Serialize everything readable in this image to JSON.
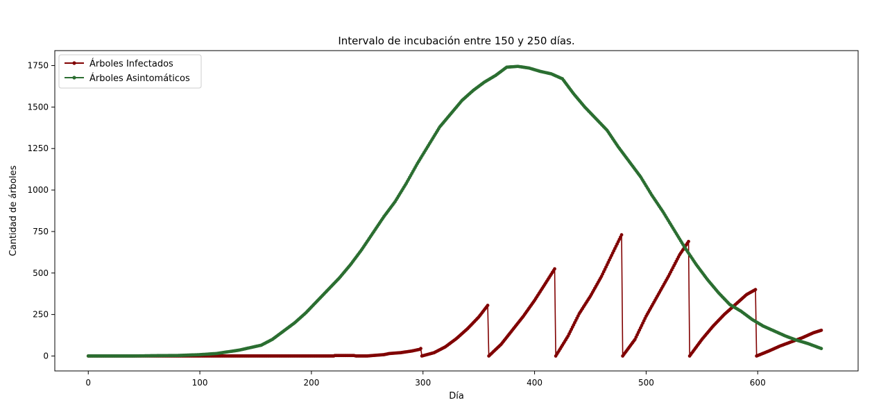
{
  "chart_data": {
    "type": "line",
    "title": "Intervalo de incubación entre 150 y 250 días.",
    "xlabel": "Día",
    "ylabel": "Cantidad de árboles",
    "xlim": [
      -30,
      690
    ],
    "ylim": [
      -90,
      1840
    ],
    "xticks": [
      0,
      100,
      200,
      300,
      400,
      500,
      600
    ],
    "yticks": [
      0,
      250,
      500,
      750,
      1000,
      1250,
      1500,
      1750
    ],
    "grid": false,
    "legend_position": "top-left",
    "series": [
      {
        "name": "Árboles Infectados",
        "color": "#800000",
        "points": [
          [
            0,
            0
          ],
          [
            60,
            0
          ],
          [
            120,
            0
          ],
          [
            180,
            0
          ],
          [
            220,
            0
          ],
          [
            221,
            3
          ],
          [
            238,
            3
          ],
          [
            240,
            0
          ],
          [
            250,
            0
          ],
          [
            255,
            3
          ],
          [
            265,
            8
          ],
          [
            270,
            15
          ],
          [
            280,
            20
          ],
          [
            290,
            30
          ],
          [
            297,
            40
          ],
          [
            298,
            45
          ],
          [
            299,
            0
          ],
          [
            310,
            20
          ],
          [
            320,
            55
          ],
          [
            330,
            105
          ],
          [
            340,
            165
          ],
          [
            350,
            235
          ],
          [
            358,
            305
          ],
          [
            359,
            0
          ],
          [
            370,
            70
          ],
          [
            380,
            155
          ],
          [
            390,
            240
          ],
          [
            400,
            335
          ],
          [
            410,
            440
          ],
          [
            418,
            525
          ],
          [
            419,
            0
          ],
          [
            430,
            120
          ],
          [
            440,
            255
          ],
          [
            450,
            360
          ],
          [
            460,
            480
          ],
          [
            470,
            620
          ],
          [
            478,
            730
          ],
          [
            479,
            0
          ],
          [
            490,
            100
          ],
          [
            500,
            240
          ],
          [
            510,
            360
          ],
          [
            520,
            480
          ],
          [
            530,
            610
          ],
          [
            538,
            690
          ],
          [
            539,
            0
          ],
          [
            550,
            100
          ],
          [
            560,
            180
          ],
          [
            570,
            250
          ],
          [
            580,
            310
          ],
          [
            590,
            370
          ],
          [
            598,
            400
          ],
          [
            599,
            0
          ],
          [
            610,
            30
          ],
          [
            620,
            60
          ],
          [
            630,
            85
          ],
          [
            640,
            110
          ],
          [
            650,
            140
          ],
          [
            657,
            155
          ]
        ]
      },
      {
        "name": "Árboles Asintomáticos",
        "color": "#2b6e31",
        "points": [
          [
            0,
            0
          ],
          [
            40,
            0
          ],
          [
            60,
            2
          ],
          [
            80,
            3
          ],
          [
            100,
            8
          ],
          [
            115,
            15
          ],
          [
            125,
            25
          ],
          [
            135,
            35
          ],
          [
            145,
            50
          ],
          [
            155,
            65
          ],
          [
            165,
            100
          ],
          [
            175,
            150
          ],
          [
            185,
            200
          ],
          [
            195,
            260
          ],
          [
            205,
            330
          ],
          [
            215,
            400
          ],
          [
            225,
            470
          ],
          [
            235,
            550
          ],
          [
            245,
            640
          ],
          [
            255,
            740
          ],
          [
            265,
            840
          ],
          [
            275,
            930
          ],
          [
            285,
            1040
          ],
          [
            295,
            1160
          ],
          [
            305,
            1270
          ],
          [
            315,
            1380
          ],
          [
            325,
            1460
          ],
          [
            335,
            1540
          ],
          [
            345,
            1600
          ],
          [
            355,
            1650
          ],
          [
            365,
            1690
          ],
          [
            375,
            1740
          ],
          [
            385,
            1745
          ],
          [
            395,
            1735
          ],
          [
            405,
            1715
          ],
          [
            415,
            1700
          ],
          [
            425,
            1670
          ],
          [
            435,
            1580
          ],
          [
            445,
            1500
          ],
          [
            455,
            1430
          ],
          [
            465,
            1360
          ],
          [
            475,
            1260
          ],
          [
            485,
            1170
          ],
          [
            495,
            1080
          ],
          [
            505,
            970
          ],
          [
            515,
            870
          ],
          [
            525,
            760
          ],
          [
            535,
            650
          ],
          [
            545,
            550
          ],
          [
            555,
            460
          ],
          [
            565,
            380
          ],
          [
            575,
            310
          ],
          [
            585,
            270
          ],
          [
            595,
            220
          ],
          [
            605,
            180
          ],
          [
            615,
            150
          ],
          [
            625,
            120
          ],
          [
            635,
            95
          ],
          [
            645,
            75
          ],
          [
            657,
            45
          ]
        ]
      }
    ]
  }
}
